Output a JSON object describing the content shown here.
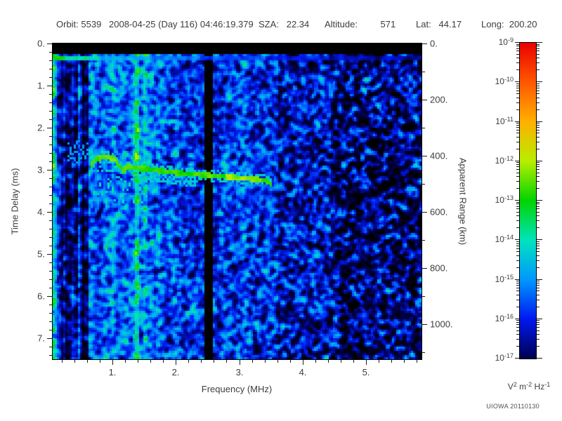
{
  "header": {
    "segments": [
      "Orbit: 5539",
      "2008-04-25 (Day 116) 04:46:19.379",
      "SZA:   22.34",
      "Altitude:         571",
      "Lat:   44.17",
      "Long:  200.20"
    ]
  },
  "watermark": "UIOWA 20110130",
  "chart_data": {
    "type": "heatmap",
    "subtype": "radar-sounder-ionogram-spectrogram",
    "x_axis": {
      "label": "Frequency (MHz)",
      "range": [
        0.058,
        5.875
      ],
      "major_ticks": [
        1,
        2,
        3,
        4,
        5
      ],
      "tick_labels": [
        "1.",
        "2.",
        "3.",
        "4.",
        "5."
      ],
      "minor_step": 0.2
    },
    "y_axis_left": {
      "label": "Time Delay (ms)",
      "range": [
        0,
        7.5
      ],
      "major_ticks": [
        0,
        1,
        2,
        3,
        4,
        5,
        6,
        7
      ],
      "tick_labels": [
        "0.",
        "1.",
        "2.",
        "3.",
        "4.",
        "5.",
        "6.",
        "7."
      ],
      "minor_step": 0.2,
      "direction": "down"
    },
    "y_axis_right": {
      "label": "Apparent Range (km)",
      "range": [
        0,
        1125
      ],
      "major_ticks": [
        0,
        200,
        400,
        600,
        800,
        1000
      ],
      "tick_labels": [
        "0.",
        "200.",
        "400.",
        "600.",
        "800.",
        "1000."
      ],
      "minor_step": 100
    },
    "colorbar": {
      "scale": "log10",
      "label_base": "10",
      "exponents": [
        -9,
        -10,
        -11,
        -12,
        -13,
        -14,
        -15,
        -16,
        -17
      ],
      "units_parts": [
        [
          "V",
          "2"
        ],
        [
          "m",
          "-2"
        ],
        [
          "Hz",
          "-1"
        ]
      ],
      "scale_stops": [
        [
          -18.2,
          "#000000"
        ],
        [
          -17.0,
          "#000050"
        ],
        [
          -16.0,
          "#0018f0"
        ],
        [
          -15.0,
          "#0098ff"
        ],
        [
          -14.0,
          "#00e4bc"
        ],
        [
          -13.0,
          "#00d400"
        ],
        [
          -12.0,
          "#b8ee00"
        ],
        [
          -11.0,
          "#ffb000"
        ],
        [
          -10.0,
          "#ff5800"
        ],
        [
          -9.0,
          "#ea0000"
        ]
      ]
    },
    "features": {
      "blank_top_ms": 0.27,
      "surface_line": {
        "t0": 0.28,
        "t1": 0.42,
        "levels": [
          [
            0.25,
            -13.2
          ],
          [
            0.8,
            -14.0
          ],
          [
            1.6,
            -14.9
          ],
          [
            2.4,
            -15.3
          ],
          [
            3.4,
            -15.7
          ],
          [
            4.4,
            -16.1
          ],
          [
            9,
            -16.5
          ]
        ]
      },
      "bands": [
        {
          "f0": 0.058,
          "f1": 0.14,
          "base": -15.2,
          "stripe": 0.55,
          "sigma": 0.7
        },
        {
          "f0": 0.14,
          "f1": 0.38,
          "base": -16.0,
          "stripe": 1.3,
          "sigma": 0.8
        },
        {
          "f0": 0.38,
          "f1": 0.62,
          "base": -16.6,
          "stripe": 1.2,
          "sigma": 0.8
        },
        {
          "f0": 0.62,
          "f1": 1.85,
          "base": -15.4,
          "stripe": 0.55,
          "sigma": 0.8
        },
        {
          "f0": 1.85,
          "f1": 2.44,
          "base": -15.85,
          "stripe": 0.25,
          "sigma": 0.8
        },
        {
          "f0": 2.44,
          "f1": 2.58,
          "base": -18.5,
          "stripe": 0.05,
          "sigma": 0.3
        },
        {
          "f0": 2.58,
          "f1": 3.6,
          "base": -15.95,
          "stripe": 0.2,
          "sigma": 0.8
        },
        {
          "f0": 3.6,
          "f1": 4.45,
          "base": -16.35,
          "stripe": 0.15,
          "sigma": 0.9
        },
        {
          "f0": 4.45,
          "f1": 5.88,
          "base": -16.85,
          "stripe": 0.2,
          "sigma": 1.05
        }
      ],
      "bright_columns": [
        {
          "f": 0.085,
          "boost": 1.0
        },
        {
          "f": 1.39,
          "boost": 1.4
        },
        {
          "f": 1.51,
          "boost": 0.7
        },
        {
          "f": 3.07,
          "boost": 0.5
        }
      ],
      "echo_trace": {
        "points": [
          [
            0.64,
            2.95
          ],
          [
            0.7,
            2.8
          ],
          [
            0.78,
            2.72
          ],
          [
            0.92,
            2.7
          ],
          [
            1.02,
            2.73
          ],
          [
            1.1,
            2.88
          ],
          [
            1.17,
            3.02
          ],
          [
            1.25,
            2.92
          ],
          [
            1.32,
            2.96
          ],
          [
            1.5,
            2.97
          ],
          [
            2.0,
            3.07
          ],
          [
            2.5,
            3.13
          ],
          [
            3.0,
            3.19
          ],
          [
            3.3,
            3.23
          ],
          [
            3.45,
            3.27
          ],
          [
            3.52,
            3.4
          ]
        ],
        "half_width_ms": 0.06,
        "level": -12.7,
        "bright_zones": [
          [
            2.8,
            3.35,
            0.55
          ],
          [
            0.8,
            1.05,
            0.25
          ]
        ]
      },
      "cusp_scatter": {
        "f0": 0.75,
        "f1": 1.55,
        "t0": 2.85,
        "t1": 3.8,
        "chance": 0.12,
        "level": -13.8
      },
      "pre_cusp_patch": {
        "f0": 0.28,
        "f1": 0.62,
        "t0": 2.3,
        "t1": 2.85,
        "chance": 0.3,
        "level": -14.7
      },
      "second_trace": {
        "f0": 1.4,
        "f1": 2.35,
        "dt": 0.22,
        "level": -14.3,
        "chance": 0.6
      }
    }
  }
}
